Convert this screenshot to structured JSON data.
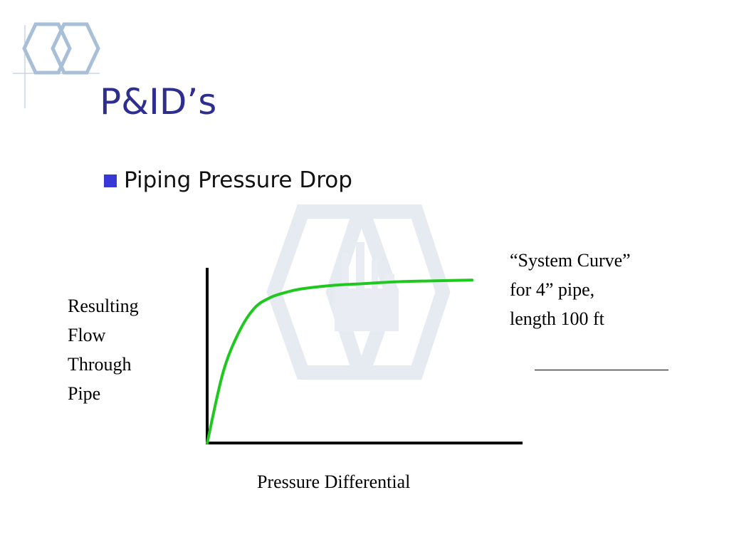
{
  "slide": {
    "title": "P&ID’s",
    "bullet": "Piping Pressure Drop",
    "colors": {
      "title": "#2e2e8f",
      "bullet": "#3838d6",
      "curve": "#1ec81e",
      "logo": "#a9bfd8",
      "watermark": "#e6ebf2"
    },
    "logo_icon": "double-hexagon-icon",
    "watermark_icon": "factory-hexagon-watermark"
  },
  "chart_data": {
    "type": "line",
    "title": "",
    "xlabel": "Pressure Differential",
    "ylabel_lines": [
      "Resulting",
      "Flow",
      "Through",
      "Pipe"
    ],
    "annotation_lines": [
      "“System Curve”",
      "for 4” pipe,",
      "length 100 ft"
    ],
    "ticks": "none",
    "grid": false,
    "xlim": [
      0,
      1
    ],
    "ylim": [
      0,
      1
    ],
    "series": [
      {
        "x": [
          0,
          0.05,
          0.1,
          0.15,
          0.2,
          0.25,
          0.3,
          0.4,
          0.5,
          0.6,
          0.7,
          0.84
        ],
        "y": [
          0,
          0.4,
          0.63,
          0.77,
          0.83,
          0.86,
          0.88,
          0.9,
          0.91,
          0.92,
          0.925,
          0.93
        ]
      }
    ]
  }
}
